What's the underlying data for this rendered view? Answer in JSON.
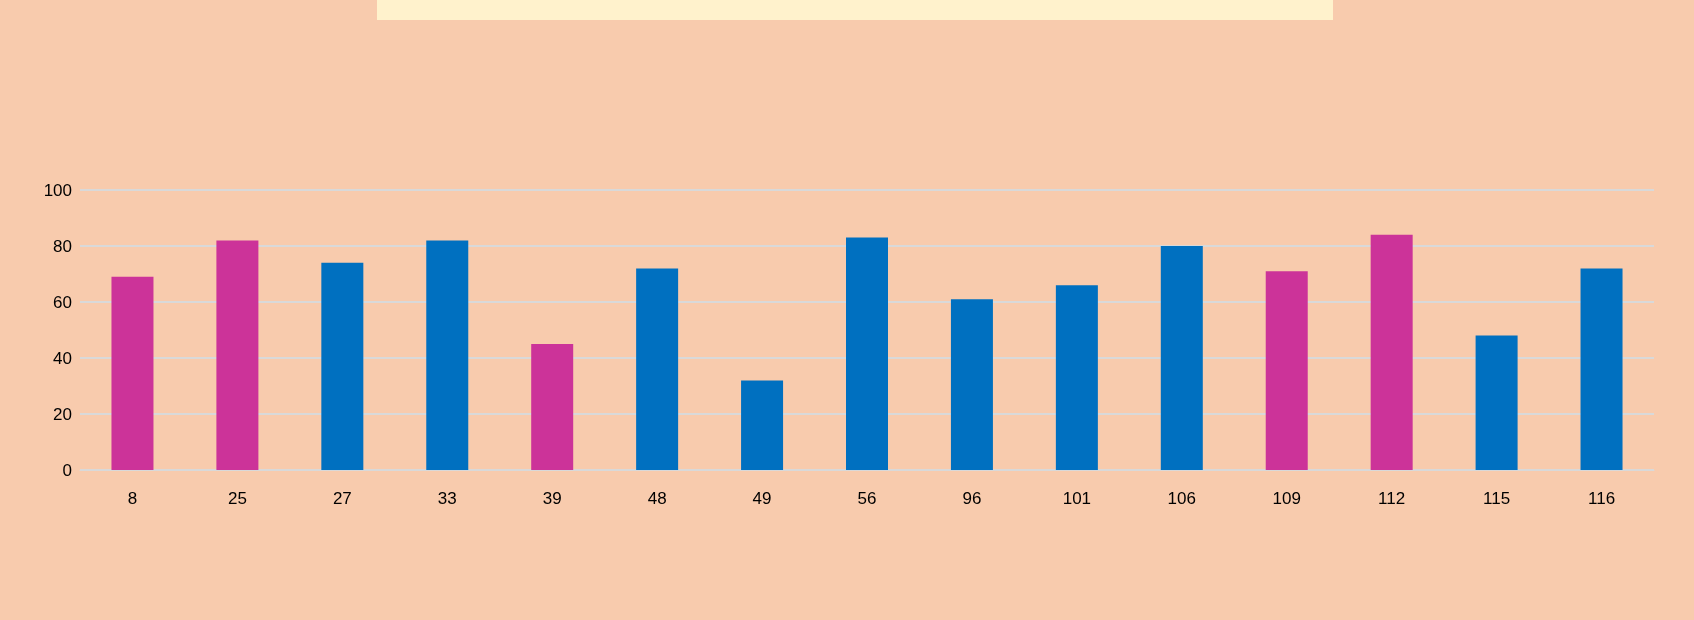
{
  "chart_data": {
    "type": "bar",
    "categories": [
      "8",
      "25",
      "27",
      "33",
      "39",
      "48",
      "49",
      "56",
      "96",
      "101",
      "106",
      "109",
      "112",
      "115",
      "116"
    ],
    "values": [
      69,
      82,
      74,
      82,
      45,
      72,
      32,
      83,
      61,
      66,
      80,
      71,
      84,
      48,
      72
    ],
    "colors": [
      "#cc3399",
      "#cc3399",
      "#0070c0",
      "#0070c0",
      "#cc3399",
      "#0070c0",
      "#0070c0",
      "#0070c0",
      "#0070c0",
      "#0070c0",
      "#0070c0",
      "#cc3399",
      "#cc3399",
      "#0070c0",
      "#0070c0"
    ],
    "ylim": [
      0,
      100
    ],
    "yticks": [
      0,
      20,
      40,
      60,
      80,
      100
    ],
    "grid": "y"
  }
}
